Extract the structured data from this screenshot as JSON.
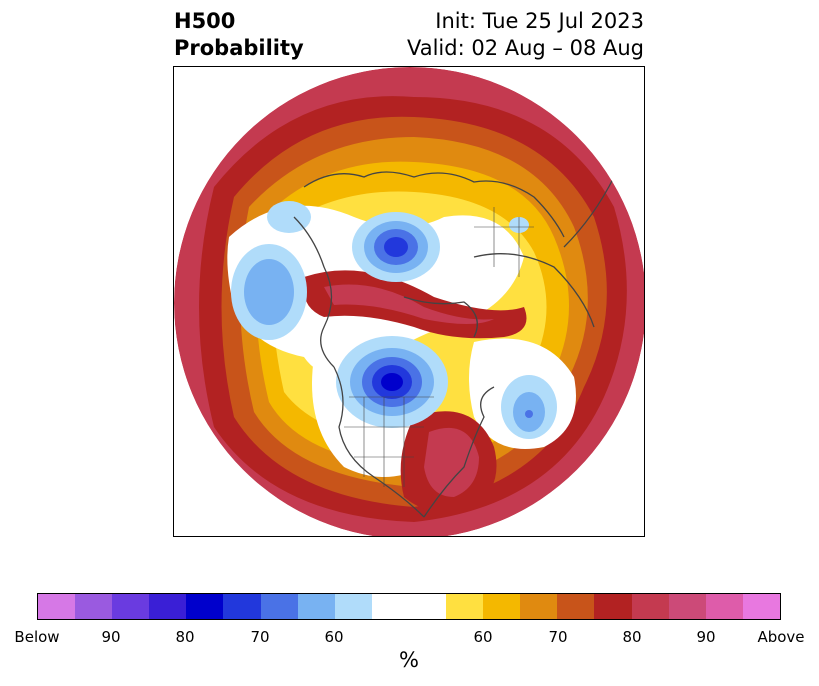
{
  "title": {
    "left_line1": "H500",
    "left_line2": "Probability",
    "right_line1": "Init: Tue 25 Jul 2023",
    "right_line2": "Valid: 02 Aug – 08 Aug"
  },
  "colorbar": {
    "units": "%",
    "tick_labels": [
      "Below",
      "90",
      "80",
      "70",
      "60",
      "60",
      "70",
      "80",
      "90",
      "Above"
    ],
    "below_colors": [
      "#d678e6",
      "#9a5ae0",
      "#6a3be0",
      "#3a1fd6",
      "#0000cc",
      "#2238dc",
      "#4a72e6",
      "#78b2f2",
      "#b0dcfa"
    ],
    "neutral_color": "#ffffff",
    "above_colors": [
      "#ffe040",
      "#f4b800",
      "#e08a10",
      "#c8541a",
      "#b22222",
      "#c43a50",
      "#cc4a78",
      "#de5caa",
      "#e878e0"
    ]
  },
  "map": {
    "projection": "polar-stereographic-north",
    "colors": {
      "rim": "#c43a50",
      "red": "#b22222",
      "rust": "#c8541a",
      "orange": "#e08a10",
      "gold": "#f4b800",
      "yellow": "#ffe040",
      "light_blue": "#b0dcfa",
      "blue": "#78b2f2",
      "mid_blue": "#4a72e6",
      "deep_blue": "#2238dc",
      "navy": "#0000cc",
      "magenta": "#de5caa",
      "coast": "#444444"
    }
  }
}
